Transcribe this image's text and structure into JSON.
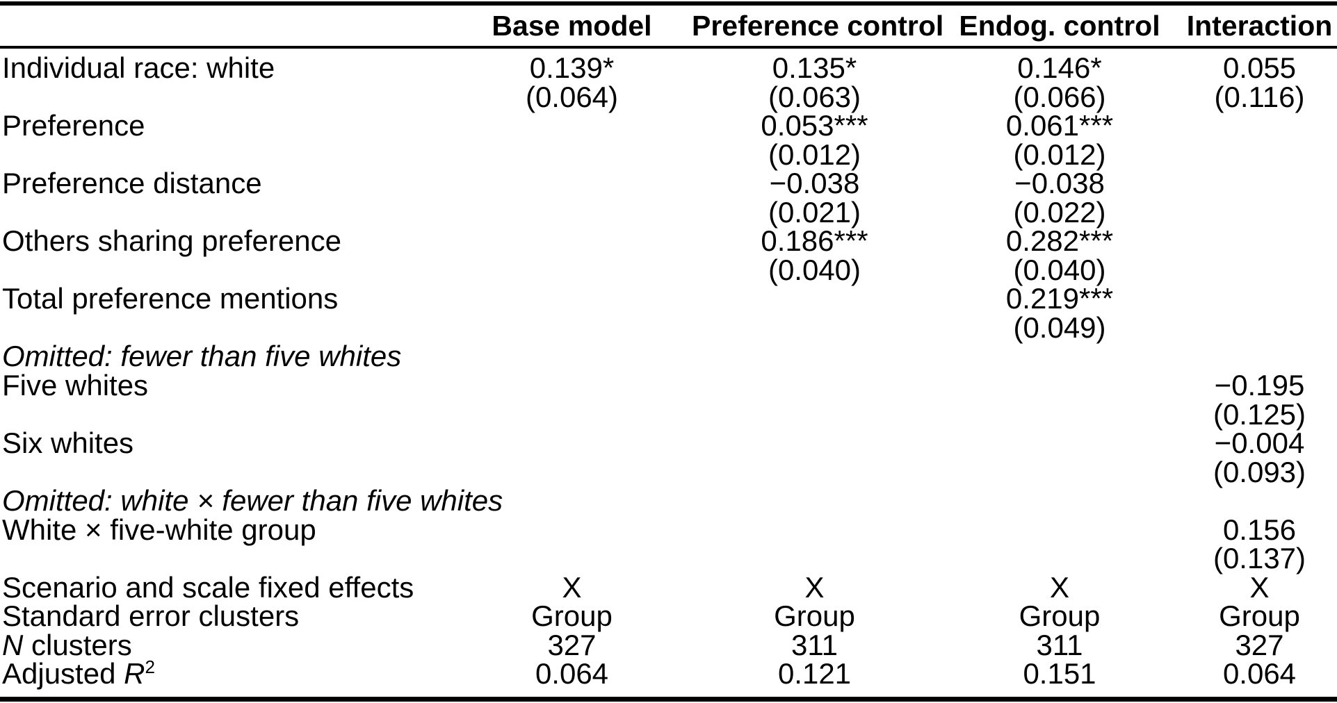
{
  "header": {
    "columns": [
      "Base model",
      "Preference control",
      "Endog. control",
      "Interaction"
    ]
  },
  "rows": [
    {
      "label": "Individual race: white",
      "c1": "0.139*",
      "c2": "0.135*",
      "c3": "0.146*",
      "c4": "0.055"
    },
    {
      "label": "",
      "c1": "(0.064)",
      "c2": "(0.063)",
      "c3": "(0.066)",
      "c4": "(0.116)"
    },
    {
      "label": "Preference",
      "c1": "",
      "c2": "0.053***",
      "c3": "0.061***",
      "c4": ""
    },
    {
      "label": "",
      "c1": "",
      "c2": "(0.012)",
      "c3": "(0.012)",
      "c4": ""
    },
    {
      "label": "Preference distance",
      "c1": "",
      "c2": "−0.038",
      "c3": "−0.038",
      "c4": ""
    },
    {
      "label": "",
      "c1": "",
      "c2": "(0.021)",
      "c3": "(0.022)",
      "c4": ""
    },
    {
      "label": "Others sharing preference",
      "c1": "",
      "c2": "0.186***",
      "c3": "0.282***",
      "c4": ""
    },
    {
      "label": "",
      "c1": "",
      "c2": "(0.040)",
      "c3": "(0.040)",
      "c4": ""
    },
    {
      "label": "Total preference mentions",
      "c1": "",
      "c2": "",
      "c3": "0.219***",
      "c4": ""
    },
    {
      "label": "",
      "c1": "",
      "c2": "",
      "c3": "(0.049)",
      "c4": ""
    },
    {
      "label": "Omitted: fewer than five whites",
      "c1": "",
      "c2": "",
      "c3": "",
      "c4": ""
    },
    {
      "label": "Five whites",
      "c1": "",
      "c2": "",
      "c3": "",
      "c4": "−0.195"
    },
    {
      "label": "",
      "c1": "",
      "c2": "",
      "c3": "",
      "c4": "(0.125)"
    },
    {
      "label": "Six whites",
      "c1": "",
      "c2": "",
      "c3": "",
      "c4": "−0.004"
    },
    {
      "label": "",
      "c1": "",
      "c2": "",
      "c3": "",
      "c4": "(0.093)"
    },
    {
      "label": "Omitted: white × fewer than five whites",
      "c1": "",
      "c2": "",
      "c3": "",
      "c4": ""
    },
    {
      "label": "White × five-white group",
      "c1": "",
      "c2": "",
      "c3": "",
      "c4": "0.156"
    },
    {
      "label": "",
      "c1": "",
      "c2": "",
      "c3": "",
      "c4": "(0.137)"
    },
    {
      "label": "Scenario and scale fixed effects",
      "c1": "X",
      "c2": "X",
      "c3": "X",
      "c4": "X"
    },
    {
      "label": "Standard error clusters",
      "c1": "Group",
      "c2": "Group",
      "c3": "Group",
      "c4": "Group"
    },
    {
      "label_italic": "N",
      "label_rest": " clusters",
      "c1": "327",
      "c2": "311",
      "c3": "311",
      "c4": "327"
    },
    {
      "label_prefix": "Adjusted ",
      "label_var": "R",
      "label_sup": "2",
      "c1": "0.064",
      "c2": "0.121",
      "c3": "0.151",
      "c4": "0.064"
    }
  ]
}
